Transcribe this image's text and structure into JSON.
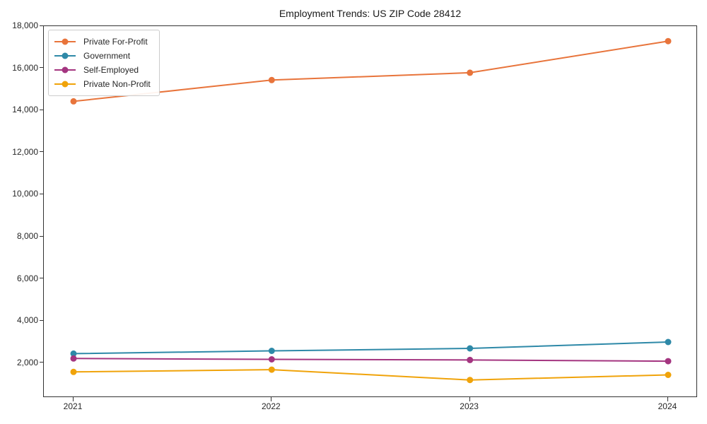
{
  "chart_data": {
    "type": "line",
    "title": "Employment Trends: US ZIP Code 28412",
    "x": [
      2021,
      2022,
      2023,
      2024
    ],
    "x_tick_labels": [
      "2021",
      "2022",
      "2023",
      "2024"
    ],
    "xlim": [
      2020.85,
      2024.15
    ],
    "ylim": [
      350,
      18000
    ],
    "y_ticks": [
      2000,
      4000,
      6000,
      8000,
      10000,
      12000,
      14000,
      16000,
      18000
    ],
    "y_tick_labels": [
      "2,000",
      "4,000",
      "6,000",
      "8,000",
      "10,000",
      "12,000",
      "14,000",
      "16,000",
      "18,000"
    ],
    "grid": false,
    "legend_position": "upper left",
    "series": [
      {
        "name": "Private For-Profit",
        "color": "#e8743b",
        "values": [
          14430,
          15440,
          15790,
          17290
        ]
      },
      {
        "name": "Government",
        "color": "#2e89a8",
        "values": [
          2450,
          2580,
          2700,
          3000
        ]
      },
      {
        "name": "Self-Employed",
        "color": "#a43580",
        "values": [
          2220,
          2180,
          2150,
          2090
        ]
      },
      {
        "name": "Private Non-Profit",
        "color": "#f0a30a",
        "values": [
          1580,
          1690,
          1200,
          1440
        ]
      }
    ],
    "xlabel": "",
    "ylabel": ""
  },
  "colors": {
    "axis": "#333333",
    "text": "#262626",
    "background": "#ffffff"
  }
}
